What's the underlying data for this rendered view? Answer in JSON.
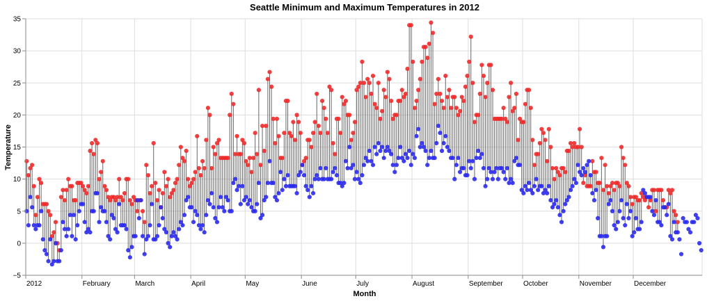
{
  "chart_data": {
    "type": "scatter",
    "title": "Seattle Minimum and Maximum Temperatures in 2012",
    "xlabel": "Month",
    "ylabel": "Temperature",
    "ylim": [
      -5,
      35
    ],
    "yticks": [
      "−5",
      "0",
      "5",
      "10",
      "15",
      "20",
      "25",
      "30",
      "35"
    ],
    "ytick_values": [
      -5,
      0,
      5,
      10,
      15,
      20,
      25,
      30,
      35
    ],
    "xticks": [
      "2012",
      "February",
      "March",
      "April",
      "May",
      "June",
      "July",
      "August",
      "September",
      "October",
      "November",
      "December"
    ],
    "grid": true,
    "colors": {
      "max": "#ee2b2b",
      "min": "#2b2bee",
      "rule": "#666666"
    },
    "start_date": "2012-01-01",
    "series": [
      {
        "name": "",
        "color": "#ee2b2b",
        "values": [
          12.8,
          10.6,
          11.7,
          12.2,
          8.9,
          4.4,
          7.2,
          10.0,
          9.4,
          6.1,
          6.1,
          6.1,
          5.0,
          4.4,
          1.1,
          1.7,
          3.3,
          0.0,
          -1.1,
          7.2,
          8.3,
          6.7,
          8.3,
          10.0,
          8.9,
          8.9,
          6.7,
          6.7,
          9.4,
          9.4,
          9.4,
          8.9,
          8.3,
          7.8,
          8.9,
          14.4,
          15.6,
          13.9,
          16.1,
          15.6,
          10.0,
          11.1,
          12.8,
          8.9,
          8.3,
          7.2,
          6.7,
          7.2,
          7.2,
          6.7,
          7.2,
          10.0,
          7.2,
          6.7,
          7.8,
          10.0,
          10.0,
          6.7,
          6.1,
          7.2,
          6.7,
          5.0,
          6.7,
          6.7,
          5.0,
          3.3,
          12.2,
          10.6,
          7.8,
          8.9,
          15.6,
          9.4,
          6.7,
          8.3,
          5.6,
          7.8,
          11.1,
          8.9,
          10.0,
          7.2,
          7.8,
          8.3,
          9.4,
          10.0,
          12.2,
          15.0,
          13.3,
          12.8,
          14.4,
          10.0,
          8.9,
          9.4,
          10.0,
          11.1,
          16.7,
          11.7,
          10.6,
          12.8,
          11.7,
          16.1,
          21.1,
          20.0,
          11.7,
          15.0,
          13.9,
          15.6,
          16.1,
          13.3,
          13.3,
          13.3,
          13.3,
          13.3,
          20.0,
          23.3,
          21.7,
          13.9,
          16.7,
          13.9,
          13.9,
          16.1,
          15.6,
          12.8,
          12.2,
          13.3,
          11.1,
          13.3,
          17.2,
          13.9,
          23.9,
          12.2,
          18.3,
          14.4,
          18.3,
          25.6,
          26.7,
          24.4,
          19.4,
          15.6,
          19.4,
          16.7,
          13.3,
          13.3,
          17.2,
          22.2,
          22.2,
          17.2,
          16.7,
          18.9,
          16.1,
          20.0,
          18.9,
          17.2,
          12.2,
          12.8,
          13.3,
          16.1,
          16.1,
          15.0,
          17.2,
          18.9,
          23.3,
          18.3,
          17.2,
          22.2,
          21.1,
          19.4,
          17.2,
          24.4,
          23.9,
          15.6,
          13.9,
          19.4,
          19.4,
          17.2,
          22.8,
          21.7,
          22.2,
          20.0,
          20.0,
          16.1,
          17.2,
          18.9,
          23.9,
          24.4,
          25.0,
          28.3,
          25.0,
          22.8,
          25.6,
          25.0,
          23.3,
          26.1,
          21.7,
          21.1,
          25.0,
          19.4,
          20.6,
          23.9,
          22.8,
          26.7,
          25.6,
          22.2,
          19.4,
          20.0,
          20.0,
          22.2,
          22.2,
          23.9,
          22.8,
          23.3,
          27.2,
          34.0,
          34.0,
          28.3,
          21.1,
          22.2,
          23.9,
          25.6,
          28.3,
          30.6,
          30.6,
          28.9,
          31.1,
          34.4,
          32.8,
          21.7,
          23.3,
          25.6,
          23.3,
          22.2,
          21.1,
          26.1,
          22.8,
          23.9,
          21.1,
          22.8,
          22.8,
          21.1,
          20.0,
          20.6,
          22.8,
          22.2,
          24.4,
          26.1,
          28.3,
          32.2,
          25.0,
          18.9,
          20.0,
          20.0,
          23.3,
          27.8,
          26.1,
          22.8,
          25.0,
          27.8,
          27.8,
          23.9,
          19.4,
          19.4,
          19.4,
          19.4,
          19.4,
          21.1,
          19.4,
          18.9,
          22.8,
          25.0,
          20.6,
          21.1,
          23.3,
          16.1,
          19.4,
          18.9,
          18.9,
          21.7,
          23.9,
          23.9,
          21.1,
          16.1,
          12.2,
          13.9,
          13.9,
          15.6,
          17.8,
          17.2,
          16.1,
          12.8,
          17.8,
          15.0,
          11.7,
          10.0,
          11.7,
          11.1,
          10.6,
          11.7,
          11.7,
          11.1,
          14.4,
          14.4,
          15.6,
          15.0,
          15.6,
          15.0,
          15.0,
          17.8,
          15.0,
          9.4,
          10.6,
          8.9,
          8.9,
          8.9,
          12.8,
          11.1,
          11.1,
          9.4,
          9.4,
          13.3,
          8.3,
          12.2,
          8.9,
          7.8,
          8.9,
          9.4,
          8.3,
          9.4,
          9.4,
          8.9,
          15.0,
          13.3,
          12.2,
          9.4,
          8.9,
          7.2,
          6.1,
          7.2,
          7.2,
          6.7,
          6.7,
          7.8,
          7.2,
          6.7,
          7.2,
          5.6,
          6.7,
          8.3,
          8.3,
          5.0,
          8.3,
          8.3,
          8.3,
          6.7,
          5.6,
          5.6,
          8.3,
          7.8,
          8.3,
          5.0,
          4.4,
          3.3
        ]
      },
      {
        "name": "",
        "color": "#2b2bee",
        "values": [
          5.0,
          2.8,
          7.2,
          5.6,
          2.8,
          2.2,
          2.8,
          2.8,
          5.0,
          0.6,
          -1.1,
          -1.7,
          -2.8,
          0.6,
          -3.3,
          -2.8,
          0.0,
          -2.8,
          -2.8,
          -1.1,
          3.3,
          2.2,
          1.1,
          2.2,
          4.4,
          1.1,
          4.4,
          0.6,
          2.8,
          5.0,
          6.1,
          6.1,
          3.3,
          1.7,
          2.2,
          1.7,
          5.0,
          5.0,
          7.8,
          7.8,
          3.3,
          5.6,
          5.0,
          5.0,
          3.3,
          1.1,
          0.6,
          4.4,
          3.9,
          2.2,
          1.7,
          6.1,
          2.8,
          2.8,
          2.8,
          2.2,
          -1.1,
          -2.2,
          -0.6,
          1.1,
          1.1,
          6.7,
          3.9,
          6.7,
          1.1,
          -1.7,
          0.6,
          1.1,
          2.8,
          6.1,
          0.6,
          0.6,
          1.1,
          2.8,
          5.6,
          3.9,
          2.2,
          1.7,
          0.0,
          -0.6,
          1.1,
          1.7,
          1.1,
          0.6,
          2.2,
          3.3,
          2.8,
          4.4,
          6.7,
          7.2,
          5.6,
          5.6,
          3.3,
          5.0,
          4.4,
          2.8,
          2.2,
          2.8,
          1.7,
          4.4,
          6.7,
          6.1,
          7.8,
          5.6,
          3.9,
          3.3,
          5.6,
          7.2,
          5.6,
          5.0,
          7.2,
          6.7,
          5.0,
          5.0,
          9.4,
          10.0,
          8.3,
          8.9,
          6.1,
          8.9,
          6.7,
          7.2,
          6.1,
          6.7,
          5.6,
          5.0,
          5.0,
          6.1,
          9.4,
          3.9,
          4.4,
          6.7,
          7.2,
          9.4,
          12.8,
          9.4,
          9.4,
          7.2,
          6.7,
          7.8,
          11.1,
          8.3,
          10.0,
          8.9,
          10.6,
          8.9,
          8.9,
          8.9,
          8.9,
          7.8,
          10.6,
          11.1,
          12.2,
          10.6,
          8.9,
          8.3,
          7.2,
          8.9,
          7.8,
          10.0,
          10.6,
          10.0,
          11.7,
          10.0,
          10.0,
          11.7,
          10.0,
          10.0,
          10.0,
          11.1,
          11.7,
          10.6,
          9.4,
          9.4,
          8.9,
          9.4,
          12.8,
          11.7,
          15.0,
          11.7,
          12.2,
          10.0,
          11.1,
          10.0,
          9.4,
          10.6,
          12.2,
          13.3,
          12.8,
          14.4,
          12.8,
          12.2,
          15.0,
          13.9,
          15.6,
          14.4,
          15.0,
          13.3,
          14.4,
          15.0,
          14.4,
          13.9,
          12.2,
          11.1,
          12.2,
          13.3,
          15.0,
          13.3,
          12.8,
          13.9,
          13.3,
          14.4,
          12.2,
          13.9,
          13.3,
          16.7,
          17.8,
          15.0,
          15.6,
          15.0,
          14.4,
          12.2,
          13.3,
          14.4,
          13.3,
          13.3,
          15.6,
          18.3,
          17.2,
          14.4,
          15.6,
          16.7,
          15.0,
          14.4,
          13.3,
          13.3,
          10.0,
          12.2,
          13.3,
          11.1,
          11.7,
          11.7,
          10.6,
          10.6,
          12.8,
          11.7,
          12.8,
          10.0,
          13.3,
          14.4,
          13.3,
          13.9,
          11.7,
          8.9,
          10.0,
          11.7,
          11.1,
          10.0,
          11.1,
          11.7,
          10.0,
          11.7,
          11.7,
          11.1,
          10.0,
          11.7,
          9.4,
          10.0,
          9.4,
          12.8,
          13.3,
          12.2,
          12.2,
          8.3,
          7.8,
          8.9,
          8.3,
          9.4,
          8.3,
          7.8,
          8.9,
          10.0,
          8.3,
          8.9,
          8.9,
          7.8,
          8.3,
          7.8,
          8.9,
          6.7,
          5.6,
          6.1,
          6.7,
          5.6,
          4.4,
          3.3,
          5.0,
          6.1,
          6.7,
          7.2,
          8.3,
          8.9,
          10.0,
          9.4,
          12.2,
          11.1,
          10.6,
          11.7,
          11.1,
          12.2,
          12.8,
          10.6,
          7.8,
          6.7,
          8.3,
          3.9,
          1.1,
          1.1,
          -0.6,
          1.1,
          1.1,
          6.1,
          6.7,
          5.0,
          2.8,
          2.2,
          3.3,
          5.0,
          6.7,
          3.9,
          2.8,
          6.1,
          3.9,
          5.0,
          1.1,
          1.7,
          3.9,
          2.2,
          2.2,
          3.3,
          8.3,
          7.8,
          7.2,
          7.2,
          7.2,
          5.0,
          4.4,
          6.7,
          3.3,
          3.3,
          2.8,
          5.6,
          5.6,
          4.4,
          6.1,
          1.1,
          0.6,
          3.3,
          1.7,
          1.7,
          0.6,
          -1.7,
          3.9,
          3.3,
          3.3,
          2.2,
          1.7,
          3.3,
          3.3,
          4.4,
          3.9,
          0.0,
          -1.1
        ]
      }
    ]
  }
}
